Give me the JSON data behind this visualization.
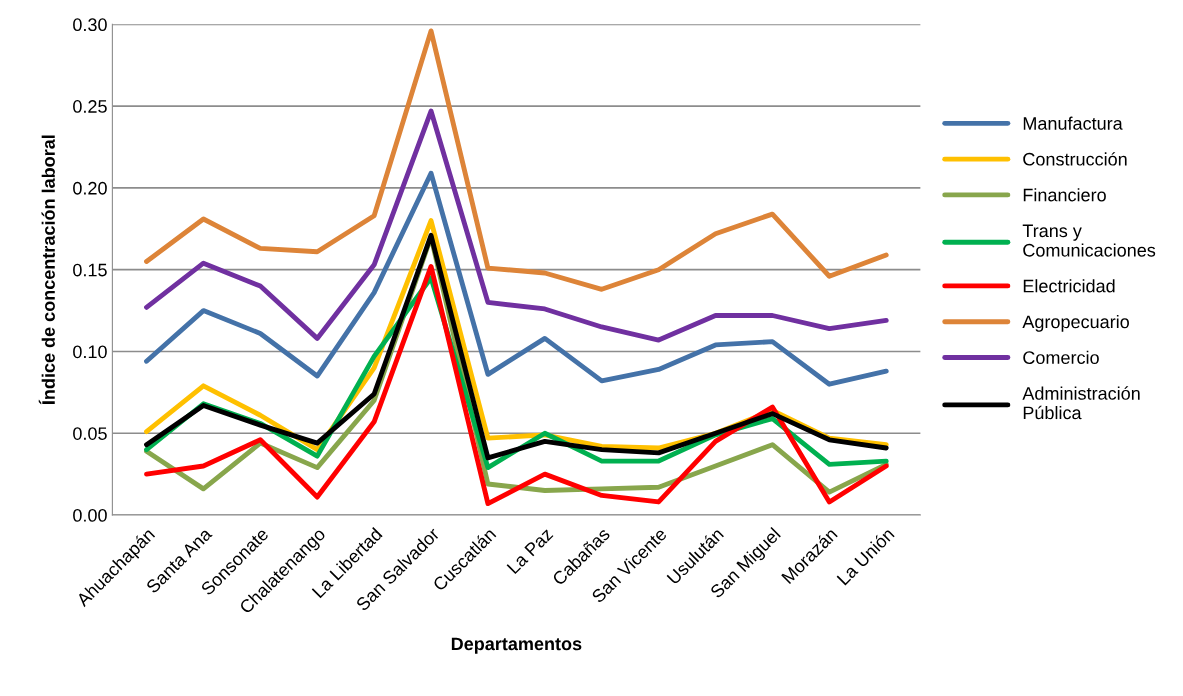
{
  "chart_data": {
    "type": "line",
    "xlabel": "Departamentos",
    "ylabel": "Índice de concentración laboral",
    "categories": [
      "Ahuachapán",
      "Santa Ana",
      "Sonsonate",
      "Chalatenango",
      "La Libertad",
      "San Salvador",
      "Cuscatlán",
      "La Paz",
      "Cabañas",
      "San Vicente",
      "Usulután",
      "San Miguel",
      "Morazán",
      "La Unión"
    ],
    "ylim": [
      0,
      0.3
    ],
    "yticks": [
      {
        "value": 0,
        "label": "0.00"
      },
      {
        "value": 0.05,
        "label": "0.05"
      },
      {
        "value": 0.1,
        "label": "0.10"
      },
      {
        "value": 0.15,
        "label": "0.15"
      },
      {
        "value": 0.2,
        "label": "0.20"
      },
      {
        "value": 0.25,
        "label": "0.25"
      },
      {
        "value": 0.3,
        "label": "0.30"
      }
    ],
    "grid": "y",
    "legend": "right",
    "marker": "none",
    "line_style": "solid",
    "series": [
      {
        "name": "Manufactura",
        "color": "#4472a8",
        "values": [
          0.094,
          0.125,
          0.111,
          0.085,
          0.136,
          0.209,
          0.086,
          0.108,
          0.082,
          0.089,
          0.104,
          0.106,
          0.08,
          0.088
        ]
      },
      {
        "name": "Construcción",
        "color": "#ffc000",
        "values": [
          0.051,
          0.079,
          0.061,
          0.04,
          0.09,
          0.18,
          0.047,
          0.049,
          0.042,
          0.041,
          0.05,
          0.064,
          0.047,
          0.043
        ]
      },
      {
        "name": "Financiero",
        "color": "#88a64c",
        "values": [
          0.039,
          0.016,
          0.044,
          0.029,
          0.07,
          0.17,
          0.019,
          0.015,
          0.016,
          0.017,
          0.03,
          0.043,
          0.014,
          0.031
        ]
      },
      {
        "name": "Trans y\nComunicaciones",
        "color": "#00b050",
        "values": [
          0.04,
          0.068,
          0.056,
          0.036,
          0.097,
          0.145,
          0.029,
          0.05,
          0.033,
          0.033,
          0.049,
          0.059,
          0.031,
          0.033
        ]
      },
      {
        "name": "Electricidad",
        "color": "#ff0000",
        "values": [
          0.025,
          0.03,
          0.046,
          0.011,
          0.057,
          0.152,
          0.007,
          0.025,
          0.012,
          0.008,
          0.045,
          0.066,
          0.008,
          0.03
        ]
      },
      {
        "name": "Agropecuario",
        "color": "#dd8438",
        "values": [
          0.155,
          0.181,
          0.163,
          0.161,
          0.183,
          0.296,
          0.151,
          0.148,
          0.138,
          0.15,
          0.172,
          0.184,
          0.146,
          0.159
        ]
      },
      {
        "name": "Comercio",
        "color": "#7030a0",
        "values": [
          0.127,
          0.154,
          0.14,
          0.108,
          0.153,
          0.247,
          0.13,
          0.126,
          0.115,
          0.107,
          0.122,
          0.122,
          0.114,
          0.119
        ]
      },
      {
        "name": "Administración\nPública",
        "color": "#000000",
        "values": [
          0.043,
          0.067,
          0.055,
          0.044,
          0.074,
          0.171,
          0.035,
          0.045,
          0.04,
          0.038,
          0.05,
          0.062,
          0.046,
          0.041
        ]
      }
    ]
  }
}
